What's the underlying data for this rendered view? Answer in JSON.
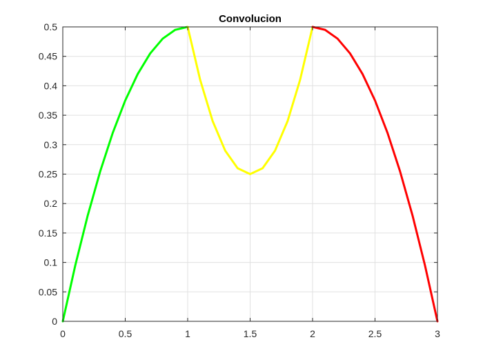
{
  "chart_data": {
    "type": "line",
    "title": "Convolucion",
    "xlabel": "",
    "ylabel": "",
    "xlim": [
      0,
      3
    ],
    "ylim": [
      0,
      0.5
    ],
    "x_ticks": [
      0,
      0.5,
      1,
      1.5,
      2,
      2.5,
      3
    ],
    "x_tick_labels": [
      "0",
      "0.5",
      "1",
      "1.5",
      "2",
      "2.5",
      "3"
    ],
    "y_ticks": [
      0,
      0.05,
      0.1,
      0.15,
      0.2,
      0.25,
      0.3,
      0.35,
      0.4,
      0.45,
      0.5
    ],
    "y_tick_labels": [
      "0",
      "0.05",
      "0.1",
      "0.15",
      "0.2",
      "0.25",
      "0.3",
      "0.35",
      "0.4",
      "0.45",
      "0.5"
    ],
    "grid": true,
    "series": [
      {
        "color": "#00ff00",
        "x": [
          0,
          0.1,
          0.2,
          0.3,
          0.4,
          0.5,
          0.6,
          0.7,
          0.8,
          0.9,
          1.0
        ],
        "y": [
          0,
          0.095,
          0.18,
          0.255,
          0.32,
          0.375,
          0.42,
          0.455,
          0.48,
          0.495,
          0.5
        ]
      },
      {
        "color": "#ffff00",
        "x": [
          1.0,
          1.1,
          1.2,
          1.3,
          1.4,
          1.5,
          1.6,
          1.7,
          1.8,
          1.9,
          2.0
        ],
        "y": [
          0.5,
          0.41,
          0.34,
          0.29,
          0.26,
          0.25,
          0.26,
          0.29,
          0.34,
          0.41,
          0.5
        ]
      },
      {
        "color": "#ff0000",
        "x": [
          2.0,
          2.1,
          2.2,
          2.3,
          2.4,
          2.5,
          2.6,
          2.7,
          2.8,
          2.9,
          3.0
        ],
        "y": [
          0.5,
          0.495,
          0.48,
          0.455,
          0.42,
          0.375,
          0.32,
          0.255,
          0.18,
          0.095,
          0
        ]
      }
    ]
  }
}
